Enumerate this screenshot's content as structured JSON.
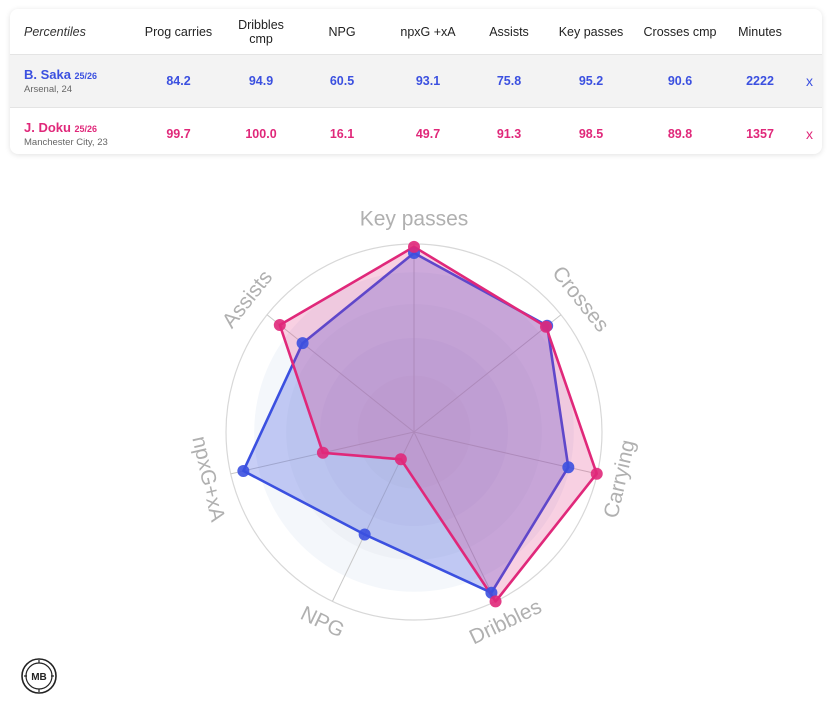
{
  "table": {
    "header_label": "Percentiles",
    "columns": [
      "Prog carries",
      "Dribbles cmp",
      "NPG",
      "npxG +xA",
      "Assists",
      "Key passes",
      "Crosses cmp",
      "Minutes"
    ],
    "remove_label": "x",
    "players": [
      {
        "name": "B. Saka",
        "season": "25/26",
        "club": "Arsenal, 24",
        "values": [
          "84.2",
          "94.9",
          "60.5",
          "93.1",
          "75.8",
          "95.2",
          "90.6",
          "2222"
        ]
      },
      {
        "name": "J. Doku",
        "season": "25/26",
        "club": "Manchester City, 23",
        "values": [
          "99.7",
          "100.0",
          "16.1",
          "49.7",
          "91.3",
          "98.5",
          "89.8",
          "1357"
        ]
      }
    ]
  },
  "colors": {
    "saka": "#3b50e0",
    "doku": "#e0287a"
  },
  "logo": {
    "text": "MB",
    "icon": "mb-badge-icon"
  },
  "chart_data": {
    "type": "radar",
    "axes": [
      "Key passes",
      "Crosses",
      "Carrying",
      "Dribbles",
      "NPG",
      "npxG+xA",
      "Assists"
    ],
    "range": [
      0,
      100
    ],
    "series": [
      {
        "name": "B. Saka",
        "color": "#3b50e0",
        "values": [
          95.2,
          90.6,
          84.2,
          94.9,
          60.5,
          93.1,
          75.8
        ]
      },
      {
        "name": "J. Doku",
        "color": "#e0287a",
        "values": [
          98.5,
          89.8,
          99.7,
          100.0,
          16.1,
          49.7,
          91.3
        ]
      }
    ]
  }
}
